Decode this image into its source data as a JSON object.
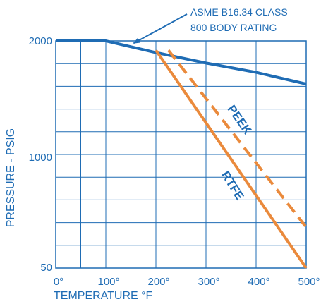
{
  "chart_data": {
    "type": "line",
    "title": "",
    "xlabel": "TEMPERATURE °F",
    "ylabel": "PRESSURE - PSIG",
    "x_ticks": [
      "0°",
      "100°",
      "200°",
      "300°",
      "400°",
      "500°"
    ],
    "y_ticks": [
      "50",
      "1000",
      "2000"
    ],
    "x_range": [
      0,
      500
    ],
    "y_range": [
      50,
      2000
    ],
    "grid": true,
    "annotation": {
      "line1": "ASME B16.34 CLASS",
      "line2": "800 BODY RATING",
      "points_at_x": 150
    },
    "series": [
      {
        "name": "ASME B16.34 CLASS 800 BODY RATING",
        "style": "solid",
        "color": "#1f6cb4",
        "x": [
          0,
          100,
          200,
          300,
          400,
          500
        ],
        "y": [
          2000,
          2000,
          1900,
          1810,
          1730,
          1630
        ]
      },
      {
        "name": "PEEK",
        "style": "dashed",
        "color": "#ea8a3c",
        "x": [
          225,
          500
        ],
        "y": [
          1920,
          400
        ]
      },
      {
        "name": "RTFE",
        "style": "solid",
        "color": "#ea8a3c",
        "x": [
          200,
          500
        ],
        "y": [
          1920,
          50
        ]
      }
    ]
  }
}
